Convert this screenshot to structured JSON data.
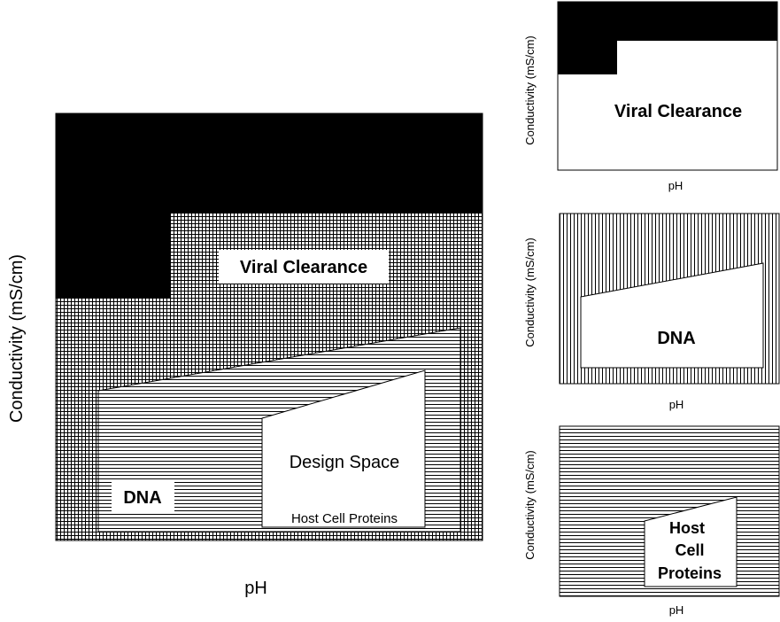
{
  "colors": {
    "black": "#000000",
    "white": "#ffffff",
    "line": "#000000"
  },
  "main_diagram": {
    "ylabel": "Conductivity (mS/cm)",
    "xlabel": "pH",
    "regions": {
      "viral_clearance": "Viral Clearance",
      "dna": "DNA",
      "design_space": "Design Space",
      "host_cell_proteins": "Host Cell Proteins"
    }
  },
  "panel_viral": {
    "ylabel": "Conductivity (mS/cm)",
    "xlabel": "pH",
    "label": "Viral Clearance"
  },
  "panel_dna": {
    "ylabel": "Conductivity (mS/cm)",
    "xlabel": "pH",
    "label": "DNA"
  },
  "panel_hcp": {
    "ylabel": "Conductivity (mS/cm)",
    "xlabel": "pH",
    "label_lines": [
      "Host",
      "Cell",
      "Proteins"
    ]
  }
}
